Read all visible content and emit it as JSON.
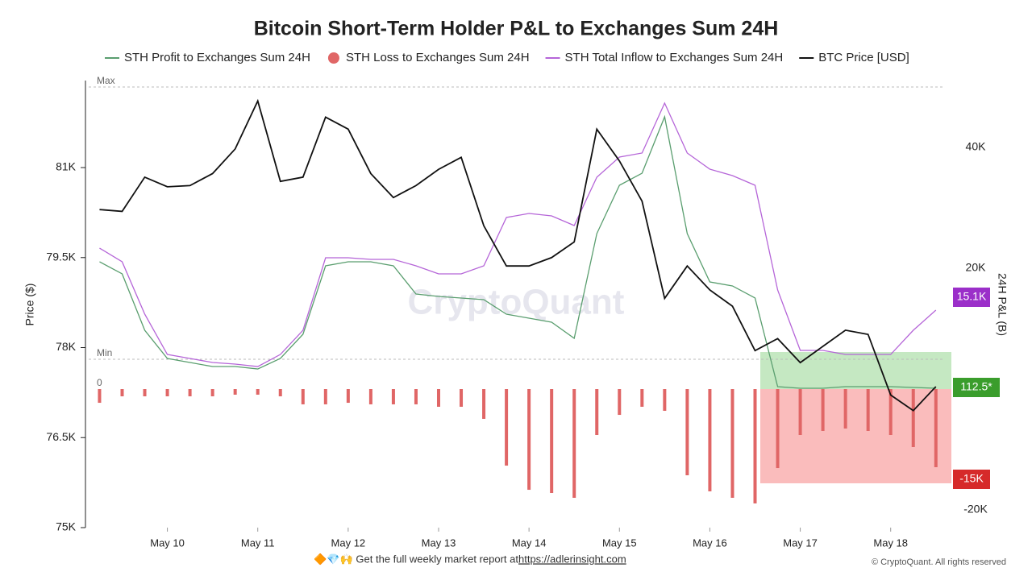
{
  "chart_data": {
    "type": "line",
    "title": "Bitcoin Short-Term Holder P&L to Exchanges Sum 24H",
    "ylabel": "Price ($)",
    "y2label": "24H P&L (B)",
    "watermark": "CryptoQuant",
    "annotations": {
      "max": "Max",
      "min": "Min",
      "zero": "0"
    },
    "tags": {
      "inflow": "15.1K",
      "profit": "112.5*",
      "loss": "-15K"
    },
    "footer": {
      "text": "🔶💎🙌 Get the full weekly market report at ",
      "link": "https://adlerinsight.com",
      "copyright": "© CryptoQuant. All rights reserved"
    },
    "xlim": [
      9.13,
      18.6
    ],
    "xticks": [
      {
        "value": 10,
        "label": "May 10"
      },
      {
        "value": 11,
        "label": "May 11"
      },
      {
        "value": 12,
        "label": "May 12"
      },
      {
        "value": 13,
        "label": "May 13"
      },
      {
        "value": 14,
        "label": "May 14"
      },
      {
        "value": 15,
        "label": "May 15"
      },
      {
        "value": 16,
        "label": "May 16"
      },
      {
        "value": 17,
        "label": "May 17"
      },
      {
        "value": 18,
        "label": "May 18"
      }
    ],
    "ylim": [
      75000,
      82450
    ],
    "yticks": [
      {
        "value": 75000,
        "label": "75K"
      },
      {
        "value": 76500,
        "label": "76.5K"
      },
      {
        "value": 78000,
        "label": "78K"
      },
      {
        "value": 79500,
        "label": "79.5K"
      },
      {
        "value": 81000,
        "label": "81K"
      }
    ],
    "y2lim": [
      -22933,
      51067
    ],
    "y2ticks": [
      {
        "value": 40000,
        "label": "40K"
      },
      {
        "value": 20000,
        "label": "20K"
      },
      {
        "value": -20000,
        "label": "-20K"
      }
    ],
    "x": [
      9.25,
      9.5,
      9.75,
      10,
      10.25,
      10.5,
      10.75,
      11,
      11.25,
      11.5,
      11.75,
      12,
      12.25,
      12.5,
      12.75,
      13,
      13.25,
      13.5,
      13.75,
      14,
      14.25,
      14.5,
      14.75,
      15,
      15.25,
      15.5,
      15.75,
      16,
      16.25,
      16.5,
      16.75,
      17,
      17.25,
      17.5,
      17.75,
      18,
      18.25,
      18.5
    ],
    "series": [
      {
        "name": "STH Profit to Exchanges Sum 24H",
        "type": "line",
        "axis": "y2",
        "color": "#5a9e6f",
        "values": [
          21070,
          19070,
          9730,
          5070,
          4400,
          3730,
          3730,
          3330,
          5070,
          9070,
          20400,
          21070,
          21070,
          20400,
          15730,
          15330,
          15070,
          14800,
          12400,
          11730,
          11070,
          8400,
          25730,
          33730,
          35730,
          45070,
          25730,
          17730,
          17070,
          15070,
          400,
          130,
          130,
          400,
          400,
          400,
          270,
          130
        ]
      },
      {
        "name": "STH Loss to Exchanges Sum 24H",
        "type": "bar",
        "axis": "y2",
        "color": "#e06666",
        "values": [
          -2270,
          -1200,
          -1200,
          -1200,
          -1200,
          -1200,
          -930,
          -930,
          -1200,
          -2530,
          -2530,
          -2270,
          -2530,
          -2530,
          -2530,
          -2930,
          -2930,
          -4930,
          -12670,
          -16670,
          -17200,
          -18000,
          -7600,
          -4270,
          -2930,
          -3600,
          -14270,
          -16930,
          -18000,
          -18930,
          -13070,
          -7600,
          -6930,
          -6530,
          -6930,
          -7600,
          -9600,
          -12930
        ]
      },
      {
        "name": "STH Total Inflow to Exchanges Sum 24H",
        "type": "line",
        "axis": "y2",
        "color": "#b565d8",
        "values": [
          23330,
          21070,
          12400,
          5730,
          5070,
          4400,
          4130,
          3730,
          5730,
          9730,
          21730,
          21730,
          21470,
          21470,
          20400,
          19070,
          19070,
          20400,
          28400,
          29070,
          28670,
          27070,
          35070,
          38400,
          39070,
          47330,
          39070,
          36400,
          35330,
          33730,
          16400,
          6400,
          6400,
          5730,
          5730,
          5730,
          9730,
          13070
        ]
      },
      {
        "name": "BTC Price [USD]",
        "type": "line",
        "axis": "y",
        "color": "#111111",
        "values": [
          80300,
          80270,
          80840,
          80680,
          80700,
          80900,
          81310,
          82110,
          80770,
          80840,
          81840,
          81640,
          80900,
          80500,
          80700,
          80970,
          81170,
          80030,
          79360,
          79360,
          79500,
          79760,
          81640,
          81110,
          80440,
          78820,
          79360,
          78960,
          78690,
          77950,
          78150,
          77750,
          78020,
          78290,
          78220,
          77210,
          76950,
          77350
        ]
      }
    ]
  }
}
